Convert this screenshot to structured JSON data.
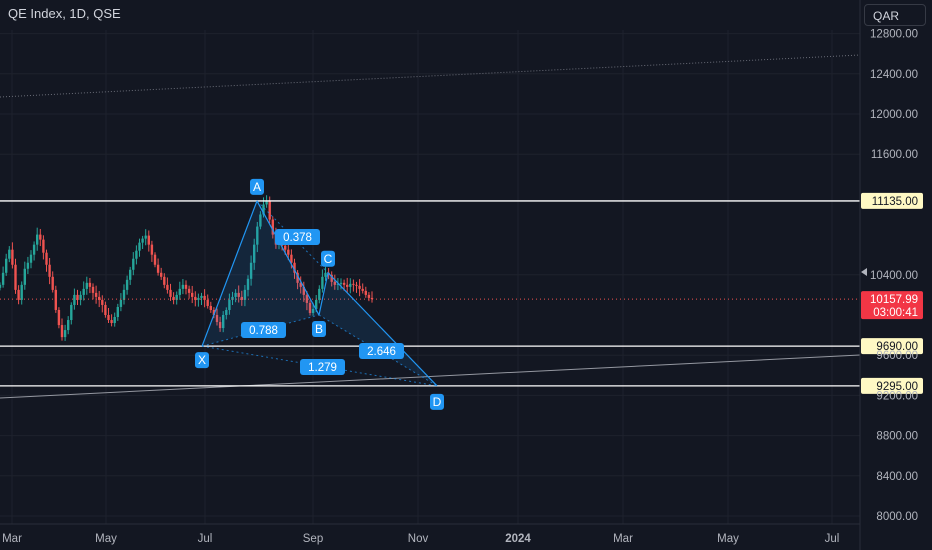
{
  "header": {
    "title": "QE Index, 1D, QSE"
  },
  "currency_button": "QAR",
  "colors": {
    "background": "#131722",
    "grid": "#1e222d",
    "up_candle": "#26a69a",
    "down_candle": "#ef5350",
    "pattern": "#2196f3",
    "level_line": "#ffffff",
    "level_tag_bg": "#fff9c4",
    "price_tag_bg": "#f23645"
  },
  "chart_data": {
    "type": "candlestick",
    "x_ticks": [
      "Mar",
      "May",
      "Jul",
      "Sep",
      "Nov",
      "2024",
      "Mar",
      "May",
      "Jul"
    ],
    "y_ticks": [
      8000,
      8400,
      8800,
      9200,
      9600,
      10400,
      11600,
      12000,
      12400,
      12800
    ],
    "ylim": [
      7950,
      12980
    ],
    "last_price": "10157.99",
    "countdown": "03:00:41",
    "horizontal_levels": [
      "11135.00",
      "9690.00",
      "9295.00"
    ],
    "harmonic_points": [
      {
        "label": "X",
        "price": 9690
      },
      {
        "label": "A",
        "price": 11135
      },
      {
        "label": "B",
        "price": 10000
      },
      {
        "label": "C",
        "price": 10420
      },
      {
        "label": "D",
        "price": 9295
      }
    ],
    "ratios": [
      "0.378",
      "0.788",
      "2.646",
      "1.279"
    ],
    "close_series": [
      10300,
      10420,
      10560,
      10650,
      10500,
      10250,
      10150,
      10300,
      10460,
      10520,
      10600,
      10700,
      10800,
      10750,
      10620,
      10500,
      10380,
      10250,
      10050,
      9900,
      9780,
      9850,
      9950,
      10100,
      10200,
      10150,
      10200,
      10260,
      10320,
      10280,
      10220,
      10180,
      10150,
      10100,
      10000,
      9950,
      9920,
      9980,
      10080,
      10150,
      10250,
      10350,
      10450,
      10560,
      10640,
      10720,
      10760,
      10790,
      10700,
      10600,
      10500,
      10420,
      10380,
      10300,
      10250,
      10180,
      10150,
      10200,
      10260,
      10300,
      10260,
      10220,
      10180,
      10150,
      10170,
      10190,
      10150,
      10090,
      10050,
      10000,
      9930,
      9870,
      10000,
      10050,
      10150,
      10180,
      10220,
      10180,
      10150,
      10250,
      10360,
      10520,
      10700,
      10880,
      11000,
      11100,
      11135,
      10950,
      10800,
      10700,
      10740,
      10690,
      10650,
      10600,
      10520,
      10420,
      10320,
      10280,
      10200,
      10120,
      10020,
      10060,
      10150,
      10260,
      10380,
      10420,
      10400,
      10330,
      10300,
      10310,
      10320,
      10300,
      10280,
      10310,
      10300,
      10290,
      10260,
      10240,
      10200,
      10170,
      10158
    ]
  }
}
